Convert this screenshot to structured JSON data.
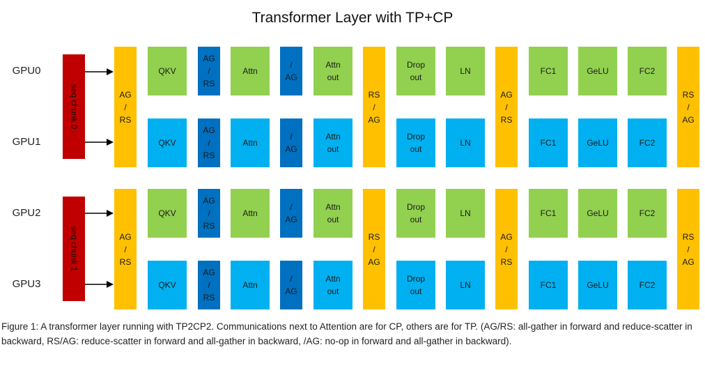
{
  "title": "Transformer Layer with TP+CP",
  "gpus": [
    "GPU0",
    "GPU1",
    "GPU2",
    "GPU3"
  ],
  "chunks": [
    "seq chunk 0",
    "seq chunk 1"
  ],
  "ops": {
    "ag_rs": "AG\n/\nRS",
    "rs_ag": "RS\n/\nAG",
    "no_ag": "/\nAG",
    "qkv": "QKV",
    "attn": "Attn",
    "attn_out": "Attn\nout",
    "dropout": "Drop\nout",
    "ln": "LN",
    "fc1": "FC1",
    "gelu": "GeLU",
    "fc2": "FC2"
  },
  "colors": {
    "tp_gpu_even": "#92d050",
    "tp_gpu_odd": "#00b0f0",
    "cp_comm": "#0070c0",
    "tp_comm": "#ffc000",
    "seq_chunk": "#c00000"
  },
  "caption": "Figure 1: A transformer layer running with TP2CP2. Communications next to Attention are for CP, others are for TP. (AG/RS: all-gather in forward and reduce-scatter in backward, RS/AG: reduce-scatter in forward and all-gather in backward, /AG: no-op in forward and all-gather in backward)."
}
